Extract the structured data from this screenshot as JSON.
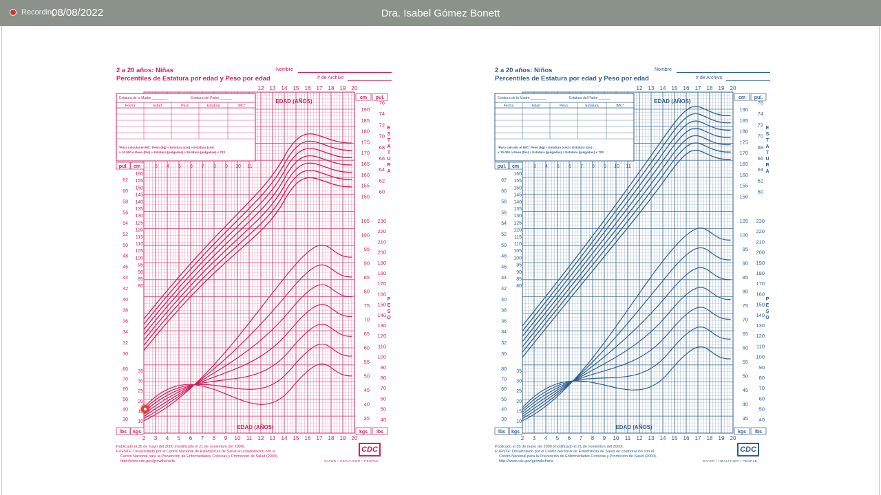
{
  "topbar": {
    "recording_label": "Recording",
    "date": "08/08/2022",
    "host_name": "Dra. Isabel Gómez Bonett"
  },
  "charts": {
    "girls": {
      "title_line1": "2 a 20 años: Niñas",
      "title_line2": "Percentiles de Estatura por edad y Peso por edad",
      "name_label": "Nombre",
      "record_label": "# de Archivo",
      "color": "#d11f5c",
      "age_axis_label": "EDAD (AÑOS)",
      "bottom_age_label": "EDAD (AÑOS)",
      "left_vertical_label": "ESTATURA",
      "right_vertical_label": "ESTATURA",
      "peso_left": "PESO",
      "peso_right": "PESO",
      "table_headers": [
        "Fecha",
        "Edad",
        "Peso",
        "Estatura",
        "IMC*"
      ],
      "parents_labels": [
        "Estatura de la Madre",
        "Estatura del Padre"
      ],
      "imc_note": "*Para calcular el IMC: Peso (kg) ÷ Estatura (cm) ÷ Estatura (cm) x 10.000 o Peso (lbs) ÷ Estatura (pulgadas) ÷ Estatura (pulgadas) x 703",
      "footer": "Publicado el 30 de mayo del 2000 (modificado el 21 de noviembre del 2000).\nFUENTE: Desarrollado por el Centro Nacional de Estadísticas de Salud en colaboración con el\n    Centro Nacional para la Prevención de Enfermedades Crónicas y Promoción de Salud (2000).\n    http://www.cdc.gov/growthcharts",
      "logo": "CDC",
      "tagline": "SAFER • HEALTHIER • PEOPLE"
    },
    "boys": {
      "title_line1": "2 a 20 años: Niños",
      "title_line2": "Percentiles de Estatura por edad y Peso por edad",
      "name_label": "Nombre",
      "record_label": "# de Archivo",
      "color": "#2f5f8e",
      "age_axis_label": "EDAD (AÑOS)",
      "bottom_age_label": "EDAD (AÑOS)",
      "left_vertical_label": "ESTATURA",
      "right_vertical_label": "ESTATURA",
      "peso_left": "PESO",
      "peso_right": "PESO",
      "table_headers": [
        "Fecha",
        "Edad",
        "Peso",
        "Estatura",
        "IMC*"
      ],
      "parents_labels": [
        "Estatura de la Madre",
        "Estatura del Padre"
      ],
      "imc_note": "*Para calcular el IMC: Peso (kg) ÷ Estatura (cm) ÷ Estatura (cm) x 10.000 o Peso (lbs) ÷ Estatura (pulgadas) ÷ Estatura (pulgadas) x 703",
      "footer": "Publicado el 30 de mayo del 2000 (modificado el 21 de noviembre del 2000).\nFUENTE: Desarrollado por el Centro Nacional de Estadísticas de Salud en colaboración con el\n    Centro Nacional para la Prevención de Enfermedades Crónicas y Promoción de Salud (2000).\n    http://www.cdc.gov/growthcharts",
      "logo": "CDC",
      "tagline": "SAFER • HEALTHIER • PEOPLE"
    }
  },
  "axes": {
    "top_ages": [
      "12",
      "13",
      "14",
      "15",
      "16",
      "17",
      "18",
      "19",
      "20"
    ],
    "bottom_ages": [
      "2",
      "3",
      "4",
      "5",
      "6",
      "7",
      "8",
      "9",
      "10",
      "11",
      "12",
      "13",
      "14",
      "15",
      "16",
      "17",
      "18",
      "19",
      "20"
    ],
    "mini_ages": [
      "3",
      "4",
      "5",
      "6",
      "7",
      "8",
      "9",
      "10",
      "11"
    ],
    "stature_cm_left": [
      "160",
      "155",
      "150",
      "145",
      "140",
      "135",
      "130",
      "125",
      "120",
      "115",
      "110",
      "105",
      "100",
      "95",
      "90",
      "85",
      "80"
    ],
    "stature_in_left": [
      "62",
      "60",
      "58",
      "56",
      "54",
      "52",
      "50",
      "48",
      "46",
      "44",
      "42",
      "40",
      "38",
      "36",
      "34",
      "32",
      "30"
    ],
    "stature_cm_right_top": [
      "190",
      "185",
      "180",
      "175",
      "170",
      "165",
      "160",
      "155",
      "150"
    ],
    "stature_in_right_top": [
      "76",
      "74",
      "72",
      "70",
      "68",
      "66",
      "64",
      "62",
      "60"
    ],
    "weight_kg_right": [
      "105",
      "100",
      "95",
      "90",
      "85",
      "80",
      "75",
      "70",
      "65",
      "60",
      "55",
      "50",
      "45",
      "40",
      "35",
      "30"
    ],
    "weight_lb_right": [
      "230",
      "220",
      "210",
      "200",
      "190",
      "180",
      "170",
      "160",
      "150",
      "140",
      "130",
      "120",
      "110",
      "100",
      "90",
      "80",
      "70",
      "60",
      "50",
      "40",
      "30"
    ],
    "weight_kg_left": [
      "35",
      "30",
      "25",
      "20",
      "15",
      "10"
    ],
    "weight_lb_left": [
      "80",
      "70",
      "60",
      "50",
      "40",
      "30"
    ],
    "unit_cm": "cm",
    "unit_in": "pul.",
    "unit_kg": "kgs",
    "unit_lb": "lbs"
  }
}
